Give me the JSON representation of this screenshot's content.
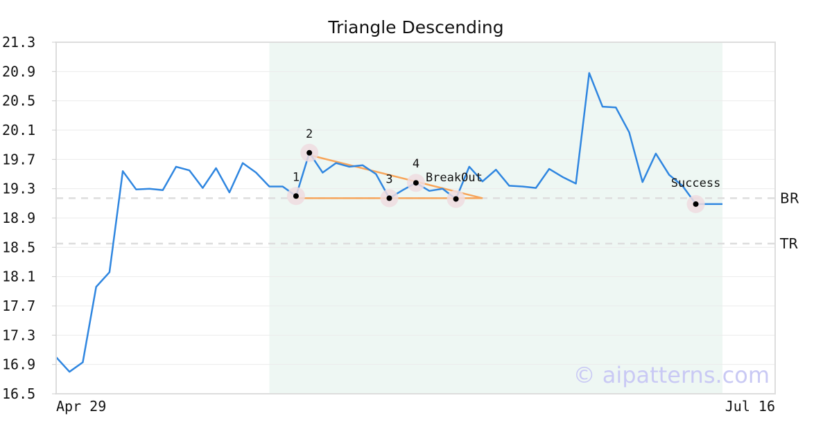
{
  "chart_data": {
    "type": "line",
    "title": "Triangle Descending",
    "xlabel": "",
    "ylabel": "",
    "ylim": [
      16.5,
      21.3
    ],
    "yticks": [
      "16.5",
      "16.9",
      "17.3",
      "17.7",
      "18.1",
      "18.5",
      "18.9",
      "19.3",
      "19.7",
      "20.1",
      "20.5",
      "20.9",
      "21.3"
    ],
    "xtick_labels": {
      "start": "Apr 29",
      "end": "Jul 16"
    },
    "grid": true,
    "colors": {
      "price": "#2f86e0",
      "pattern": "#f7a55a",
      "highlight": "#eef7f3",
      "level": "#dddddd",
      "marker_ring": "#eedcdf"
    },
    "highlight_range": [
      16,
      50
    ],
    "series": [
      {
        "values": [
          17.0,
          16.8,
          16.93,
          17.96,
          18.16,
          19.54,
          19.29,
          19.3,
          19.28,
          19.6,
          19.55,
          19.31,
          19.58,
          19.25,
          19.65,
          19.52,
          19.33,
          19.33,
          19.2,
          19.79,
          19.52,
          19.65,
          19.6,
          19.62,
          19.5,
          19.17,
          19.28,
          19.38,
          19.27,
          19.3,
          19.16,
          19.6,
          19.4,
          19.56,
          19.34,
          19.33,
          19.31,
          19.57,
          19.46,
          19.37,
          20.88,
          20.42,
          20.41,
          20.07,
          19.39,
          19.78,
          19.49,
          19.34,
          19.09,
          19.09,
          19.09
        ]
      }
    ],
    "pattern_lines": [
      {
        "from": [
          19,
          19.76
        ],
        "to": [
          32,
          19.17
        ]
      },
      {
        "from": [
          18,
          19.17
        ],
        "to": [
          32,
          19.17
        ]
      }
    ],
    "markers": [
      {
        "label": "1",
        "x": 18,
        "y": 19.2
      },
      {
        "label": "2",
        "x": 19,
        "y": 19.79
      },
      {
        "label": "3",
        "x": 25,
        "y": 19.17
      },
      {
        "label": "4",
        "x": 27,
        "y": 19.38
      },
      {
        "label": "",
        "x": 30,
        "y": 19.16
      },
      {
        "label": "",
        "x": 48,
        "y": 19.09
      }
    ],
    "annotations": [
      {
        "text": "BreakOut",
        "x": 27,
        "y": 19.38
      },
      {
        "text": "Success",
        "x": 48,
        "y": 19.09
      }
    ],
    "levels": [
      {
        "label": "BR",
        "y": 19.17
      },
      {
        "label": "TR",
        "y": 18.55
      }
    ]
  },
  "watermark": "© aipatterns.com"
}
